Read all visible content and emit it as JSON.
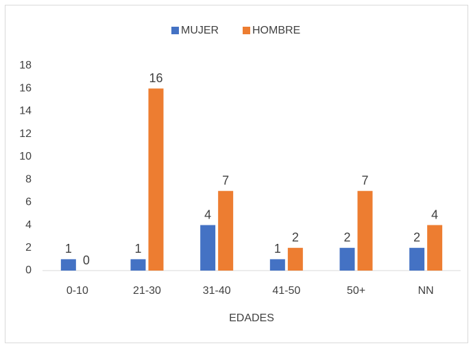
{
  "chart_data": {
    "type": "bar",
    "x_label": "EDADES",
    "categories": [
      "0-10",
      "21-30",
      "31-40",
      "41-50",
      "50+",
      "NN"
    ],
    "series": [
      {
        "name": "MUJER",
        "color": "#4472c4",
        "values": [
          1,
          1,
          4,
          1,
          2,
          2
        ]
      },
      {
        "name": "HOMBRE",
        "color": "#ed7d31",
        "values": [
          0,
          16,
          7,
          2,
          7,
          4
        ]
      }
    ],
    "ylim": [
      0,
      18
    ],
    "yticks": [
      0,
      2,
      4,
      6,
      8,
      10,
      12,
      14,
      16,
      18
    ],
    "grid": false,
    "legend": "top"
  }
}
